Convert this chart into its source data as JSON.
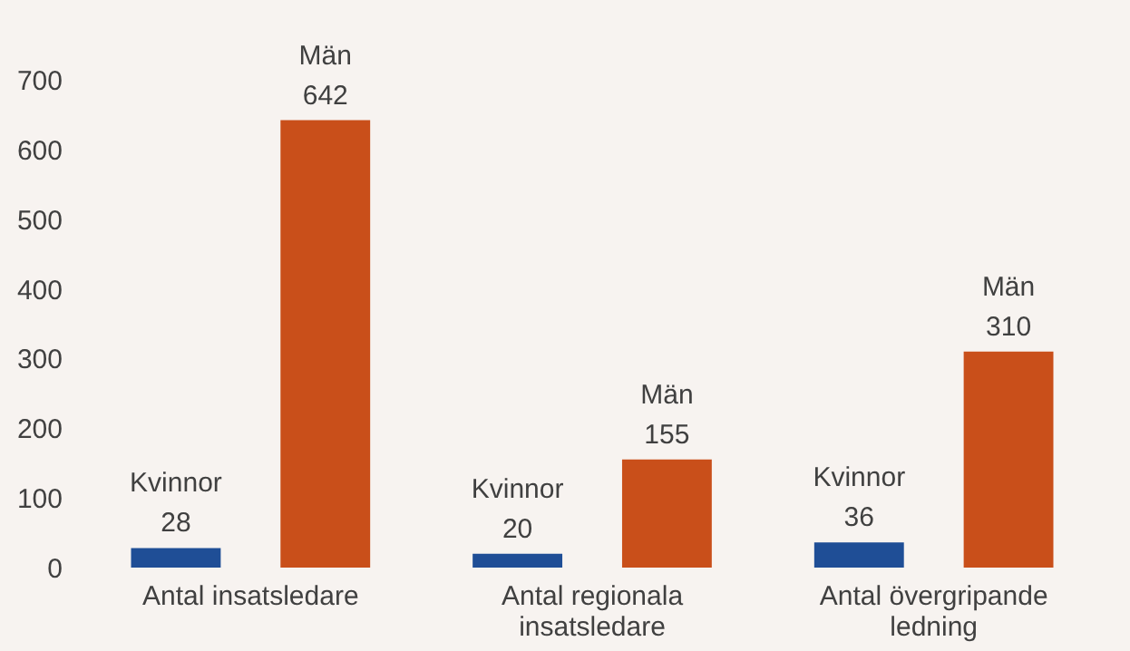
{
  "chart_data": {
    "type": "bar",
    "categories": [
      "Antal insatsledare",
      "Antal regionala insatsledare",
      "Antal övergripande ledning"
    ],
    "series": [
      {
        "name": "Kvinnor",
        "color": "#1f4e96",
        "values": [
          28,
          20,
          36
        ]
      },
      {
        "name": "Män",
        "color": "#c94f1a",
        "values": [
          642,
          155,
          310
        ]
      }
    ],
    "ylim": [
      0,
      700
    ],
    "yticks": [
      0,
      100,
      200,
      300,
      400,
      500,
      600,
      700
    ],
    "grid": false,
    "legend": false,
    "data_labels": true
  }
}
